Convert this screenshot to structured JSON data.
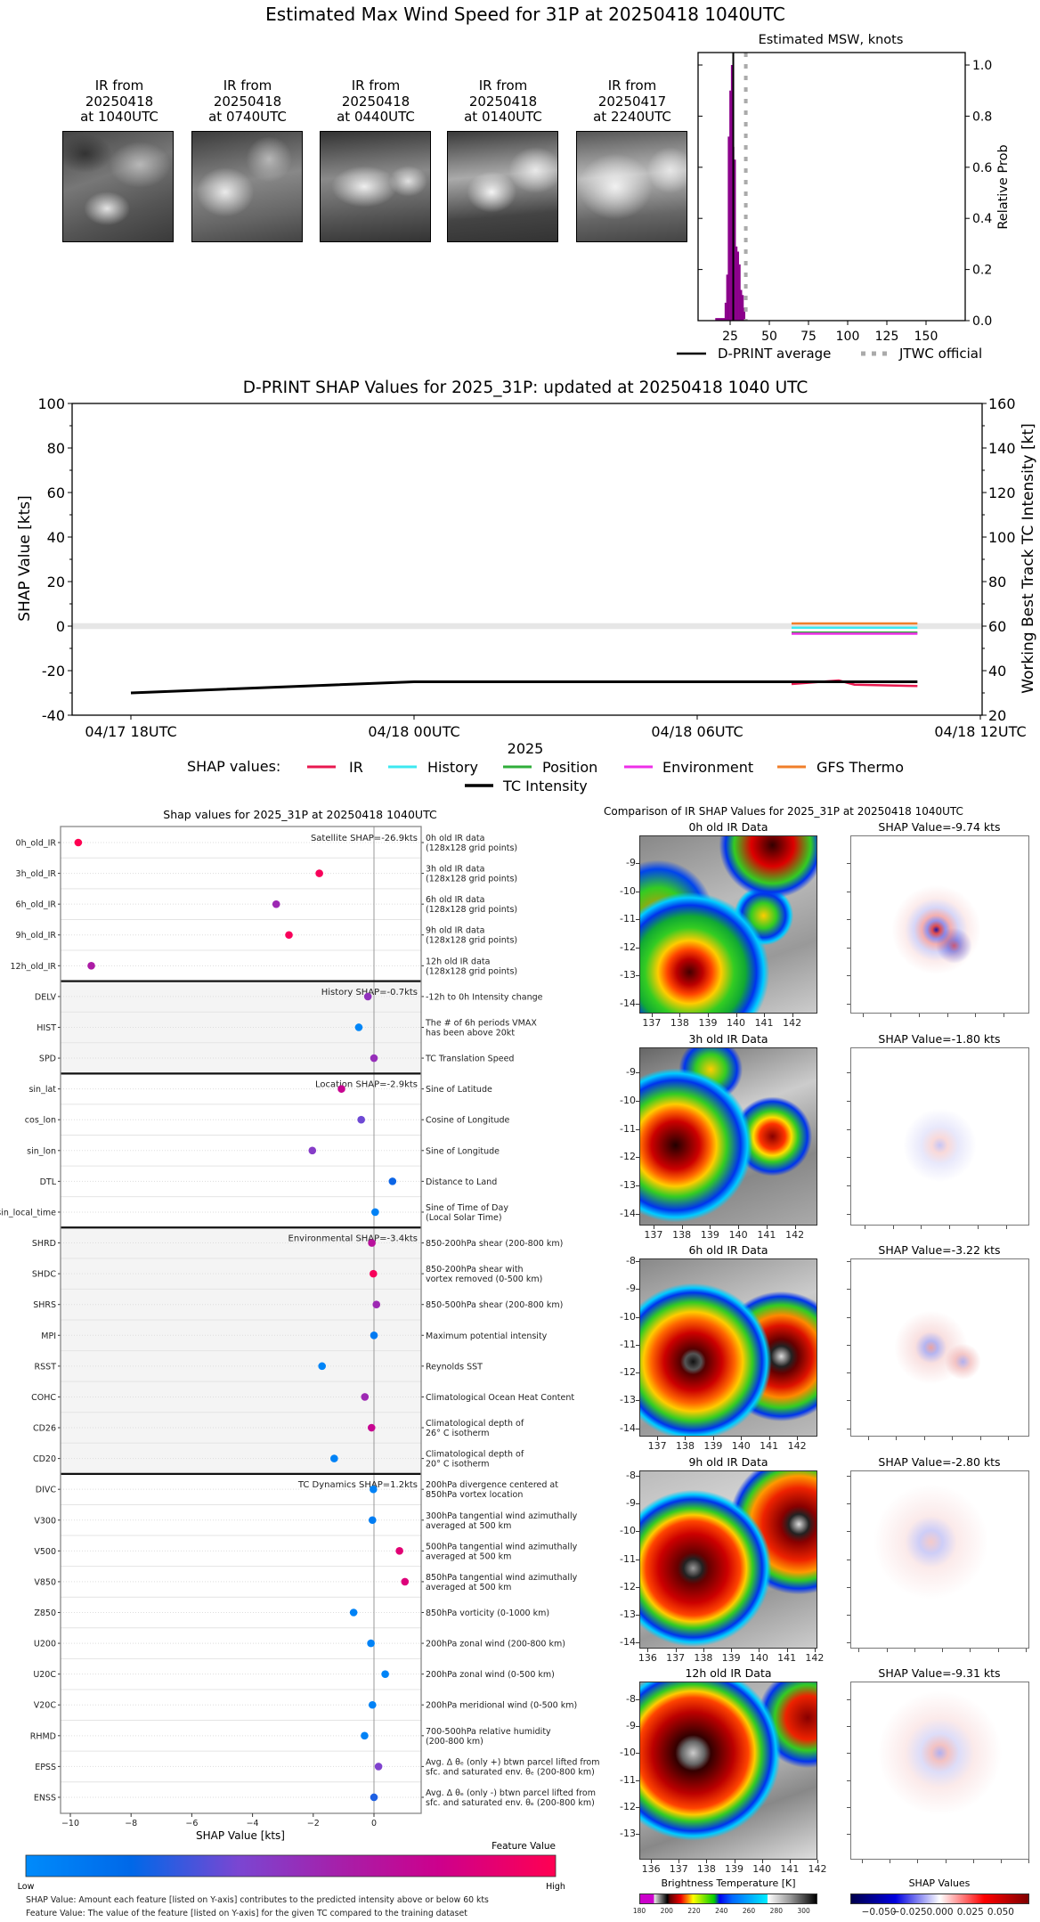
{
  "title": "Estimated Max Wind Speed for 31P at 20250418 1040UTC",
  "thumbnails": [
    {
      "line1": "IR from",
      "line2": "20250418",
      "line3": "at 1040UTC"
    },
    {
      "line1": "IR from",
      "line2": "20250418",
      "line3": "at 0740UTC"
    },
    {
      "line1": "IR from",
      "line2": "20250418",
      "line3": "at 0440UTC"
    },
    {
      "line1": "IR from",
      "line2": "20250418",
      "line3": "at 0140UTC"
    },
    {
      "line1": "IR from",
      "line2": "20250417",
      "line3": "at 2240UTC"
    }
  ],
  "chart_data": [
    {
      "type": "bar",
      "title": "Estimated MSW, knots",
      "xlabel": "",
      "ylabel": "Relative Prob",
      "xlim": [
        4.5,
        175
      ],
      "ylim": [
        0,
        1.05
      ],
      "xticks": [
        "25",
        "50",
        "75",
        "100",
        "125",
        "150"
      ],
      "yticks": [
        "0.0",
        "0.2",
        "0.4",
        "0.6",
        "0.8",
        "1.0"
      ],
      "bar_color": "#8b008b",
      "bins_knots": [
        16,
        17,
        18,
        19,
        20,
        21,
        22,
        23,
        24,
        25,
        26,
        27,
        28,
        29,
        30,
        31,
        32,
        33,
        34
      ],
      "values": [
        0.01,
        0.01,
        0.01,
        0.01,
        0.01,
        0.01,
        0.07,
        0.18,
        0.72,
        0.9,
        1.0,
        0.68,
        0.63,
        0.29,
        0.27,
        0.22,
        0.12,
        0.1,
        0.05
      ],
      "reference_lines": [
        {
          "name": "D-PRINT average",
          "x": 27,
          "color": "#000000",
          "style": "solid"
        },
        {
          "name": "JTWC official",
          "x": 35,
          "color": "#aaaaaa",
          "style": "dotted"
        }
      ],
      "legend": "bottom"
    },
    {
      "type": "line",
      "title": "D-PRINT SHAP Values for 2025_31P: updated at 20250418 1040 UTC",
      "xlabel": "2025",
      "ylabel": "SHAP Value [kts]",
      "ylabel_right": "Working Best Track TC Intensity [kt]",
      "ylim": [
        -40,
        100
      ],
      "ylim_right": [
        20,
        160
      ],
      "yticks": [
        "-40",
        "-20",
        "0",
        "20",
        "40",
        "60",
        "80",
        "100"
      ],
      "yticks_right": [
        "20",
        "40",
        "60",
        "80",
        "100",
        "120",
        "140",
        "160"
      ],
      "xticks": [
        "04/17 18UTC",
        "04/18 00UTC",
        "04/18 06UTC",
        "04/18 12UTC"
      ],
      "legend_title": "SHAP values:",
      "legend": "bottom",
      "zero_band_color": "#e6e6e6",
      "series": [
        {
          "name": "IR",
          "color": "#e8194f",
          "x": [
            "04/18 0800UTC",
            "04/18 0900UTC",
            "04/18 0920UTC",
            "04/18 1040UTC"
          ],
          "y": [
            -26.0,
            -24.4,
            -26.3,
            -26.9
          ]
        },
        {
          "name": "History",
          "color": "#3de8f0",
          "x": [
            "04/18 0800UTC",
            "04/18 1040UTC"
          ],
          "y": [
            -0.7,
            -0.7
          ]
        },
        {
          "name": "Position",
          "color": "#2fae3a",
          "x": [
            "04/18 0800UTC",
            "04/18 1040UTC"
          ],
          "y": [
            -2.9,
            -2.9
          ]
        },
        {
          "name": "Environment",
          "color": "#ee2fe8",
          "x": [
            "04/18 0800UTC",
            "04/18 1040UTC"
          ],
          "y": [
            -3.4,
            -3.4
          ]
        },
        {
          "name": "GFS Thermo",
          "color": "#f07f2a",
          "x": [
            "04/18 0800UTC",
            "04/18 1040UTC"
          ],
          "y": [
            1.2,
            1.2
          ]
        },
        {
          "name": "TC Intensity",
          "color": "#000000",
          "axis": "right",
          "x": [
            "04/17 1800UTC",
            "04/18 0000UTC",
            "04/18 0600UTC",
            "04/18 1040UTC"
          ],
          "y": [
            30,
            35,
            35,
            35
          ]
        }
      ]
    },
    {
      "type": "scatter",
      "title": "Shap values for 2025_31P at 20250418 1040UTC",
      "xlabel": "SHAP Value [kts]",
      "xlim": [
        -10.35,
        1.55
      ],
      "xticks": [
        "−10",
        "−8",
        "−6",
        "−4",
        "−2",
        "0"
      ],
      "xtick_values": [
        -10,
        -8,
        -6,
        -4,
        -2,
        0
      ],
      "colorbar": {
        "title": "Feature Value",
        "low": "Low",
        "high": "High"
      },
      "footnotes": [
        "SHAP Value: Amount each feature [listed on Y-axis] contributes to the predicted intensity above or below 60 kts",
        "Feature Value: The value of the feature [listed on Y-axis] for the given TC compared to the training dataset"
      ],
      "groups": [
        {
          "label": "Satellite SHAP=-26.9kts",
          "shaded": false,
          "features": [
            {
              "name": "0h_old_IR",
              "desc": "0h old IR data\n(128x128 grid points)",
              "shap": -9.74,
              "feature_value": 1.0
            },
            {
              "name": "3h_old_IR",
              "desc": "3h old IR data\n(128x128 grid points)",
              "shap": -1.8,
              "feature_value": 0.97
            },
            {
              "name": "6h_old_IR",
              "desc": "6h old IR data\n(128x128 grid points)",
              "shap": -3.22,
              "feature_value": 0.55
            },
            {
              "name": "9h_old_IR",
              "desc": "9h old IR data\n(128x128 grid points)",
              "shap": -2.8,
              "feature_value": 0.97
            },
            {
              "name": "12h_old_IR",
              "desc": "12h old IR data\n(128x128 grid points)",
              "shap": -9.31,
              "feature_value": 0.62
            }
          ]
        },
        {
          "label": "History SHAP=-0.7kts",
          "shaded": true,
          "features": [
            {
              "name": "DELV",
              "desc": "-12h to 0h Intensity change",
              "shap": -0.2,
              "feature_value": 0.5
            },
            {
              "name": "HIST",
              "desc": "The # of 6h periods VMAX\nhas been above 20kt",
              "shap": -0.5,
              "feature_value": 0.03
            },
            {
              "name": "SPD",
              "desc": "TC Translation Speed",
              "shap": 0.0,
              "feature_value": 0.52
            }
          ]
        },
        {
          "label": "Location SHAP=-2.9kts",
          "shaded": false,
          "features": [
            {
              "name": "sin_lat",
              "desc": "Sine of Latitude",
              "shap": -1.07,
              "feature_value": 0.75
            },
            {
              "name": "cos_lon",
              "desc": "Cosine of Longitude",
              "shap": -0.42,
              "feature_value": 0.38
            },
            {
              "name": "sin_lon",
              "desc": "Sine of Longitude",
              "shap": -2.03,
              "feature_value": 0.45
            },
            {
              "name": "DTL",
              "desc": "Distance to Land",
              "shap": 0.61,
              "feature_value": 0.22
            },
            {
              "name": "sin_local_time",
              "desc": "Sine of Time of Day\n(Local Solar Time)",
              "shap": 0.04,
              "feature_value": 0.06
            }
          ]
        },
        {
          "label": "Environmental SHAP=-3.4kts",
          "shaded": true,
          "features": [
            {
              "name": "SHRD",
              "desc": "850-200hPa shear (200-800 km)",
              "shap": -0.07,
              "feature_value": 0.68
            },
            {
              "name": "SHDC",
              "desc": "850-200hPa shear with\nvortex removed (0-500 km)",
              "shap": -0.02,
              "feature_value": 0.97
            },
            {
              "name": "SHRS",
              "desc": "850-500hPa shear (200-800 km)",
              "shap": 0.08,
              "feature_value": 0.55
            },
            {
              "name": "MPI",
              "desc": "Maximum potential intensity",
              "shap": 0.0,
              "feature_value": 0.1
            },
            {
              "name": "RSST",
              "desc": "Reynolds SST",
              "shap": -1.71,
              "feature_value": 0.04
            },
            {
              "name": "COHC",
              "desc": "Climatological Ocean Heat Content",
              "shap": -0.3,
              "feature_value": 0.55
            },
            {
              "name": "CD26",
              "desc": "Climatological depth of\n26° C isotherm",
              "shap": -0.08,
              "feature_value": 0.75
            },
            {
              "name": "CD20",
              "desc": "Climatological depth of\n20° C isotherm",
              "shap": -1.31,
              "feature_value": 0.05
            }
          ]
        },
        {
          "label": "TC Dynamics SHAP=1.2kts",
          "shaded": false,
          "features": [
            {
              "name": "DIVC",
              "desc": "200hPa divergence centered at\n850hPa vortex location",
              "shap": -0.02,
              "feature_value": 0.05
            },
            {
              "name": "V300",
              "desc": "300hPa tangential wind azimuthally\naveraged at 500 km",
              "shap": -0.05,
              "feature_value": 0.08
            },
            {
              "name": "V500",
              "desc": "500hPa tangential wind azimuthally\naveraged at 500 km",
              "shap": 0.84,
              "feature_value": 0.87
            },
            {
              "name": "V850",
              "desc": "850hPa tangential wind azimuthally\naveraged at 500 km",
              "shap": 1.02,
              "feature_value": 0.85
            },
            {
              "name": "Z850",
              "desc": "850hPa vorticity (0-1000 km)",
              "shap": -0.67,
              "feature_value": 0.05
            },
            {
              "name": "U200",
              "desc": "200hPa zonal wind (200-800 km)",
              "shap": -0.1,
              "feature_value": 0.05
            },
            {
              "name": "U20C",
              "desc": "200hPa zonal wind (0-500 km)",
              "shap": 0.37,
              "feature_value": 0.04
            },
            {
              "name": "V20C",
              "desc": "200hPa meridional wind (0-500 km)",
              "shap": -0.05,
              "feature_value": 0.05
            },
            {
              "name": "RHMD",
              "desc": "700-500hPa relative humidity\n(200-800 km)",
              "shap": -0.31,
              "feature_value": 0.05
            },
            {
              "name": "EPSS",
              "desc": "Avg. Δ θₑ (only +) btwn parcel lifted from\nsfc. and saturated env. θₑ (200-800 km)",
              "shap": 0.15,
              "feature_value": 0.42
            },
            {
              "name": "ENSS",
              "desc": "Avg. Δ θₑ (only -) btwn parcel lifted from\nsfc. and saturated env. θₑ (200-800 km)",
              "shap": 0.0,
              "feature_value": 0.25
            }
          ]
        }
      ]
    }
  ],
  "ir_comparison": {
    "title": "Comparison of IR SHAP Values for 2025_31P at 20250418 1040UTC",
    "panels": [
      {
        "ir_title": "0h old IR Data",
        "shap_title": "SHAP Value=-9.74 kts",
        "lat_ticks": [
          "-9",
          "-10",
          "-11",
          "-12",
          "-13",
          "-14"
        ],
        "lon_ticks": [
          "137",
          "138",
          "139",
          "140",
          "141",
          "142"
        ]
      },
      {
        "ir_title": "3h old IR Data",
        "shap_title": "SHAP Value=-1.80 kts",
        "lat_ticks": [
          "-9",
          "-10",
          "-11",
          "-12",
          "-13",
          "-14"
        ],
        "lon_ticks": [
          "137",
          "138",
          "139",
          "140",
          "141",
          "142"
        ]
      },
      {
        "ir_title": "6h old IR Data",
        "shap_title": "SHAP Value=-3.22 kts",
        "lat_ticks": [
          "-8",
          "-9",
          "-10",
          "-11",
          "-12",
          "-13",
          "-14"
        ],
        "lon_ticks": [
          "137",
          "138",
          "139",
          "140",
          "141",
          "142"
        ]
      },
      {
        "ir_title": "9h old IR Data",
        "shap_title": "SHAP Value=-2.80 kts",
        "lat_ticks": [
          "-8",
          "-9",
          "-10",
          "-11",
          "-12",
          "-13",
          "-14"
        ],
        "lon_ticks": [
          "136",
          "137",
          "138",
          "139",
          "140",
          "141",
          "142"
        ]
      },
      {
        "ir_title": "12h old IR Data",
        "shap_title": "SHAP Value=-9.31 kts",
        "lat_ticks": [
          "-8",
          "-9",
          "-10",
          "-11",
          "-12",
          "-13"
        ],
        "lon_ticks": [
          "136",
          "137",
          "138",
          "139",
          "140",
          "141",
          "142"
        ]
      }
    ],
    "bt_colorbar": {
      "title": "Brightness Temperature [K]",
      "ticks": [
        "180",
        "200",
        "220",
        "240",
        "260",
        "280",
        "300"
      ]
    },
    "shap_colorbar": {
      "title": "SHAP Values",
      "ticks": [
        "−0.050",
        "−0.025",
        "0.000",
        "0.025",
        "0.050"
      ]
    }
  }
}
